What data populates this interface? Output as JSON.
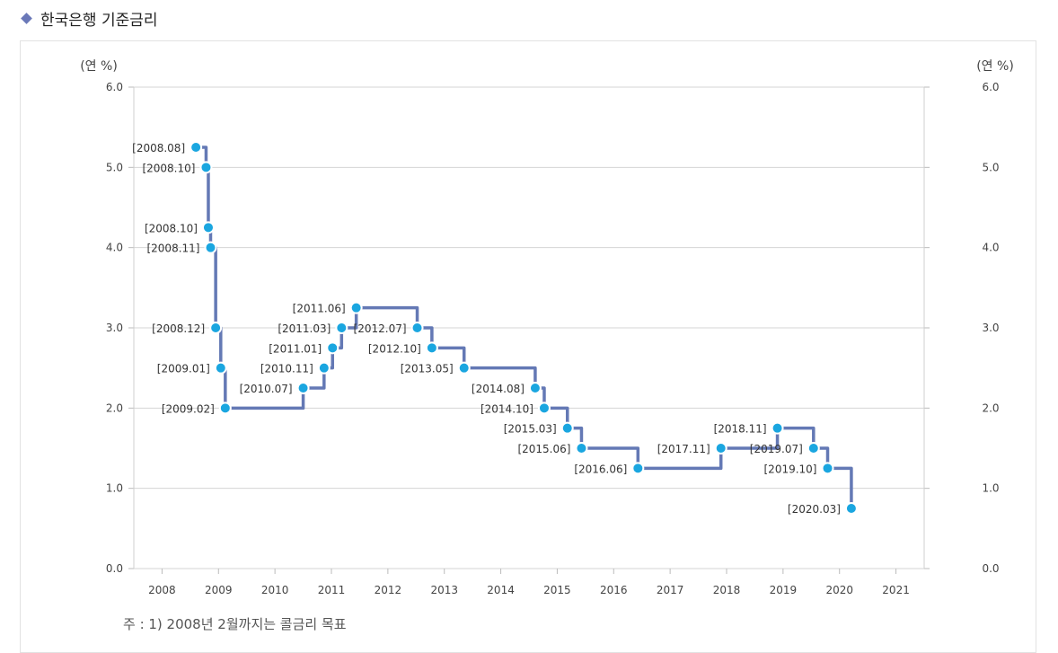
{
  "page": {
    "title": "한국은행 기준금리",
    "note": "주 : 1) 2008년 2월까지는 콜금리 목표"
  },
  "chart_data": {
    "type": "line",
    "step": true,
    "y_unit_left": "(연 %)",
    "y_unit_right": "(연 %)",
    "ylim": [
      0,
      6
    ],
    "y_ticks": [
      "0.0",
      "1.0",
      "2.0",
      "3.0",
      "4.0",
      "5.0",
      "6.0"
    ],
    "xlim": [
      2007.5,
      2021.5
    ],
    "x_ticks": [
      "2008",
      "2009",
      "2010",
      "2011",
      "2012",
      "2013",
      "2014",
      "2015",
      "2016",
      "2017",
      "2018",
      "2019",
      "2020",
      "2021"
    ],
    "grid": true,
    "line_color": "#6479b5",
    "point_color": "#1aa6e0",
    "series": [
      {
        "points": [
          {
            "label": "[2008.08]",
            "x": 2008.6,
            "y": 5.25
          },
          {
            "label": "[2008.10]",
            "x": 2008.78,
            "y": 5.0
          },
          {
            "label": "[2008.10]",
            "x": 2008.82,
            "y": 4.25
          },
          {
            "label": "[2008.11]",
            "x": 2008.86,
            "y": 4.0
          },
          {
            "label": "[2008.12]",
            "x": 2008.95,
            "y": 3.0
          },
          {
            "label": "[2009.01]",
            "x": 2009.04,
            "y": 2.5
          },
          {
            "label": "[2009.02]",
            "x": 2009.12,
            "y": 2.0
          },
          {
            "label": "[2010.07]",
            "x": 2010.5,
            "y": 2.25
          },
          {
            "label": "[2010.11]",
            "x": 2010.87,
            "y": 2.5
          },
          {
            "label": "[2011.01]",
            "x": 2011.02,
            "y": 2.75
          },
          {
            "label": "[2011.03]",
            "x": 2011.18,
            "y": 3.0
          },
          {
            "label": "[2011.06]",
            "x": 2011.44,
            "y": 3.25
          },
          {
            "label": "[2012.07]",
            "x": 2012.52,
            "y": 3.0
          },
          {
            "label": "[2012.10]",
            "x": 2012.78,
            "y": 2.75
          },
          {
            "label": "[2013.05]",
            "x": 2013.35,
            "y": 2.5
          },
          {
            "label": "[2014.08]",
            "x": 2014.61,
            "y": 2.25
          },
          {
            "label": "[2014.10]",
            "x": 2014.77,
            "y": 2.0
          },
          {
            "label": "[2015.03]",
            "x": 2015.18,
            "y": 1.75
          },
          {
            "label": "[2015.06]",
            "x": 2015.43,
            "y": 1.5
          },
          {
            "label": "[2016.06]",
            "x": 2016.43,
            "y": 1.25
          },
          {
            "label": "[2017.11]",
            "x": 2017.9,
            "y": 1.5
          },
          {
            "label": "[2018.11]",
            "x": 2018.9,
            "y": 1.75
          },
          {
            "label": "[2019.07]",
            "x": 2019.54,
            "y": 1.5
          },
          {
            "label": "[2019.10]",
            "x": 2019.79,
            "y": 1.25
          },
          {
            "label": "[2020.03]",
            "x": 2020.21,
            "y": 0.75
          }
        ]
      }
    ]
  }
}
